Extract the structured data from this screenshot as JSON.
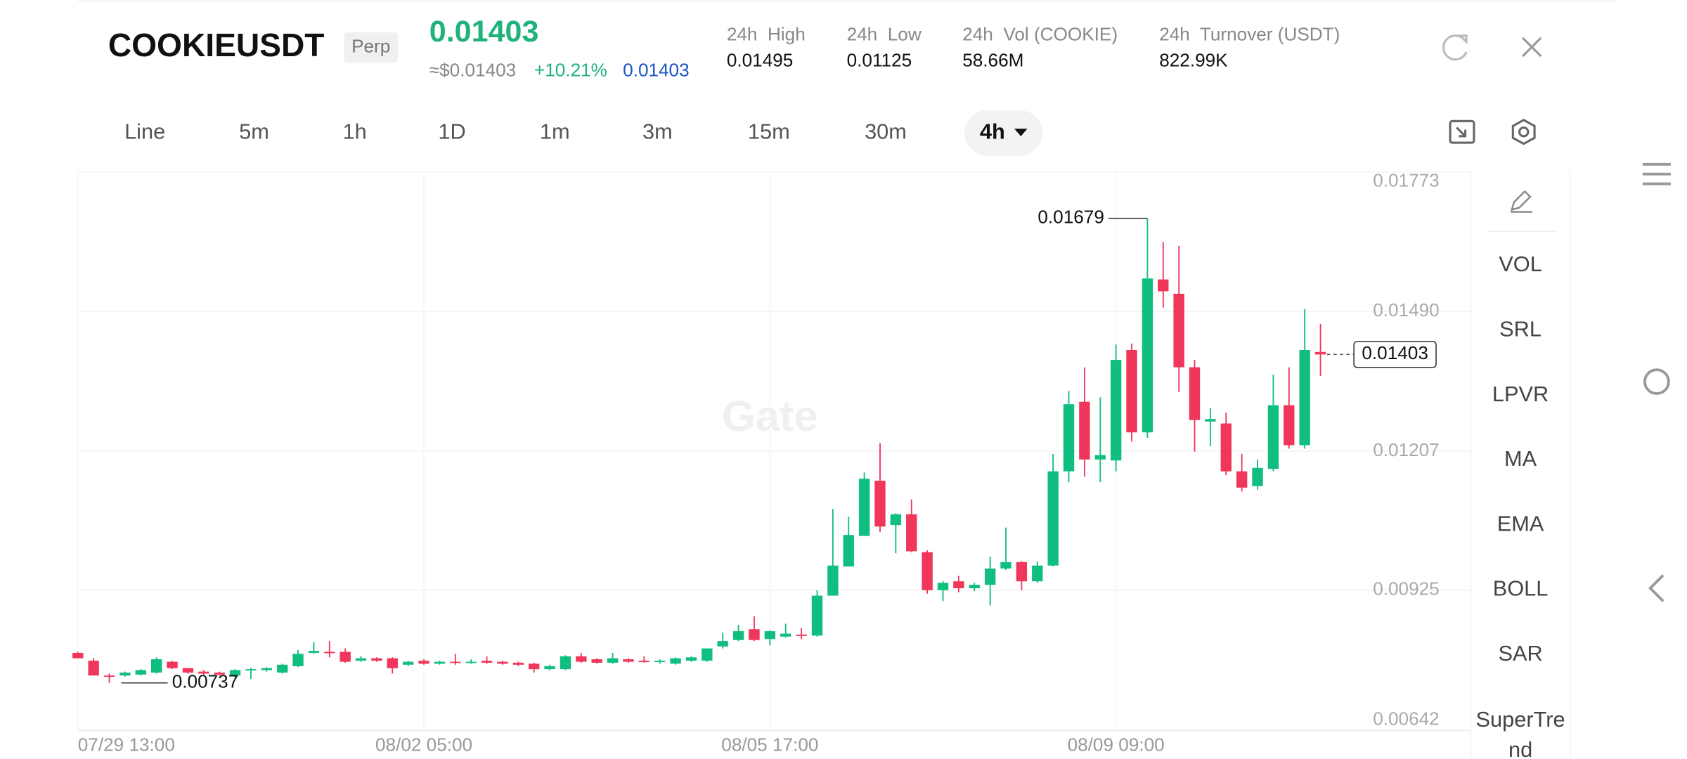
{
  "header": {
    "symbol": "COOKIEUSDT",
    "contract": "Perp",
    "last_price": "0.01403",
    "usd_price": "≈$0.01403",
    "change": "+10.21%",
    "mark_price": "0.01403",
    "stats": [
      {
        "label": "24h  High",
        "value": "0.01495"
      },
      {
        "label": "24h  Low",
        "value": "0.01125"
      },
      {
        "label": "24h  Vol (COOKIE)",
        "value": "58.66M"
      },
      {
        "label": "24h  Turnover (USDT)",
        "value": "822.99K"
      }
    ]
  },
  "timeframes": [
    "Line",
    "5m",
    "1h",
    "1D",
    "1m",
    "3m",
    "15m",
    "30m",
    "4h"
  ],
  "active_timeframe_index": 8,
  "indicators": [
    "VOL",
    "SRL",
    "LPVR",
    "MA",
    "EMA",
    "BOLL",
    "SAR",
    "SuperTrend"
  ],
  "chart_data": {
    "type": "candlestick",
    "watermark": "Gate",
    "ylim": [
      0.00642,
      0.01773
    ],
    "yticks": [
      0.00642,
      0.00925,
      0.01207,
      {
        "value": 0.0149,
        "label": "0.01490"
      },
      0.01773
    ],
    "xticks": [
      {
        "value": 0,
        "label": "07/29 13:00"
      },
      {
        "value": 22,
        "label": "08/02 05:00"
      },
      {
        "value": 44,
        "label": "08/05 17:00"
      },
      {
        "value": 66,
        "label": "08/09 09:00"
      }
    ],
    "grid": true,
    "colors": {
      "up": "#10bf7f",
      "down": "#f0365b"
    },
    "max_label": 0.01679,
    "min_label": 0.00737,
    "last_label": 0.01403,
    "candles": {
      "open": [
        0.00798,
        0.00782,
        0.00752,
        0.00752,
        0.00754,
        0.00758,
        0.0078,
        0.00767,
        0.0076,
        0.00758,
        0.00752,
        0.00763,
        0.00763,
        0.00758,
        0.00771,
        0.00798,
        0.008,
        0.008,
        0.00782,
        0.00787,
        0.00787,
        0.00774,
        0.00782,
        0.00776,
        0.0078,
        0.00778,
        0.00782,
        0.0078,
        0.00778,
        0.00776,
        0.00765,
        0.00765,
        0.00791,
        0.00785,
        0.00778,
        0.00785,
        0.00782,
        0.0078,
        0.00776,
        0.00782,
        0.00782,
        0.00811,
        0.00824,
        0.00846,
        0.00826,
        0.00831,
        0.00835,
        0.00833,
        0.00914,
        0.00973,
        0.01035,
        0.01147,
        0.01057,
        0.01079,
        0.01002,
        0.00925,
        0.00943,
        0.00929,
        0.00936,
        0.00969,
        0.00982,
        0.00943,
        0.00975,
        0.01166,
        0.01307,
        0.0119,
        0.01188,
        0.01412,
        0.01245,
        0.01555,
        0.01526,
        0.01377,
        0.01267,
        0.01263,
        0.01166,
        0.01136,
        0.01171,
        0.013,
        0.01219,
        0.01408
      ],
      "high": [
        0.008,
        0.00787,
        0.00756,
        0.0076,
        0.00765,
        0.00789,
        0.00782,
        0.00767,
        0.00763,
        0.0076,
        0.00765,
        0.00767,
        0.00769,
        0.00776,
        0.00804,
        0.0082,
        0.00822,
        0.00807,
        0.00791,
        0.00789,
        0.00789,
        0.00782,
        0.00785,
        0.00782,
        0.00796,
        0.00785,
        0.00791,
        0.00782,
        0.0078,
        0.00778,
        0.00774,
        0.00793,
        0.00798,
        0.00787,
        0.00798,
        0.00787,
        0.00791,
        0.00785,
        0.00789,
        0.00791,
        0.00807,
        0.00839,
        0.00855,
        0.00872,
        0.00844,
        0.00857,
        0.00848,
        0.00925,
        0.0109,
        0.01074,
        0.01164,
        0.01223,
        0.01081,
        0.01109,
        0.01006,
        0.00943,
        0.00954,
        0.0094,
        0.00993,
        0.01052,
        0.00984,
        0.00984,
        0.01201,
        0.01329,
        0.01377,
        0.01316,
        0.01423,
        0.01425,
        0.01679,
        0.01631,
        0.01623,
        0.01392,
        0.01294,
        0.01285,
        0.01201,
        0.0119,
        0.01362,
        0.01377,
        0.01495,
        0.01465
      ],
      "low": [
        0.00787,
        0.00752,
        0.00737,
        0.0075,
        0.00752,
        0.00756,
        0.00765,
        0.00756,
        0.00754,
        0.00752,
        0.00745,
        0.00745,
        0.0076,
        0.00756,
        0.00769,
        0.00796,
        0.00789,
        0.00778,
        0.0078,
        0.0078,
        0.00756,
        0.00771,
        0.00774,
        0.00774,
        0.00774,
        0.00776,
        0.00776,
        0.00774,
        0.00771,
        0.00758,
        0.00763,
        0.00763,
        0.00778,
        0.00776,
        0.00776,
        0.00778,
        0.00778,
        0.00776,
        0.00774,
        0.0078,
        0.0078,
        0.00807,
        0.00822,
        0.00822,
        0.00813,
        0.00829,
        0.00826,
        0.00831,
        0.00914,
        0.00973,
        0.01035,
        0.01043,
        0.01,
        0.01002,
        0.00918,
        0.00903,
        0.00921,
        0.00923,
        0.00894,
        0.00966,
        0.00925,
        0.0094,
        0.00973,
        0.01144,
        0.01155,
        0.01144,
        0.01166,
        0.01226,
        0.01234,
        0.01498,
        0.01327,
        0.01206,
        0.01217,
        0.01158,
        0.01125,
        0.01129,
        0.01166,
        0.01212,
        0.01212,
        0.01359
      ],
      "close": [
        0.00787,
        0.00752,
        0.0075,
        0.00758,
        0.00763,
        0.00785,
        0.00767,
        0.00758,
        0.00756,
        0.00754,
        0.00763,
        0.00765,
        0.00767,
        0.00774,
        0.00796,
        0.00802,
        0.00798,
        0.0078,
        0.00787,
        0.00782,
        0.00767,
        0.0078,
        0.00776,
        0.0078,
        0.00778,
        0.0078,
        0.00778,
        0.00776,
        0.00774,
        0.00765,
        0.00771,
        0.00791,
        0.0078,
        0.00778,
        0.00787,
        0.0078,
        0.0078,
        0.00782,
        0.00787,
        0.00789,
        0.00807,
        0.00822,
        0.00842,
        0.00824,
        0.00842,
        0.00837,
        0.00833,
        0.00914,
        0.00975,
        0.01037,
        0.01151,
        0.01054,
        0.01079,
        0.01004,
        0.00925,
        0.0094,
        0.00929,
        0.00936,
        0.00969,
        0.00982,
        0.00943,
        0.00975,
        0.01166,
        0.01302,
        0.0119,
        0.01199,
        0.01392,
        0.01245,
        0.01557,
        0.01531,
        0.01377,
        0.0127,
        0.01272,
        0.01166,
        0.01133,
        0.01173,
        0.013,
        0.01219,
        0.01412,
        0.01403
      ]
    }
  }
}
